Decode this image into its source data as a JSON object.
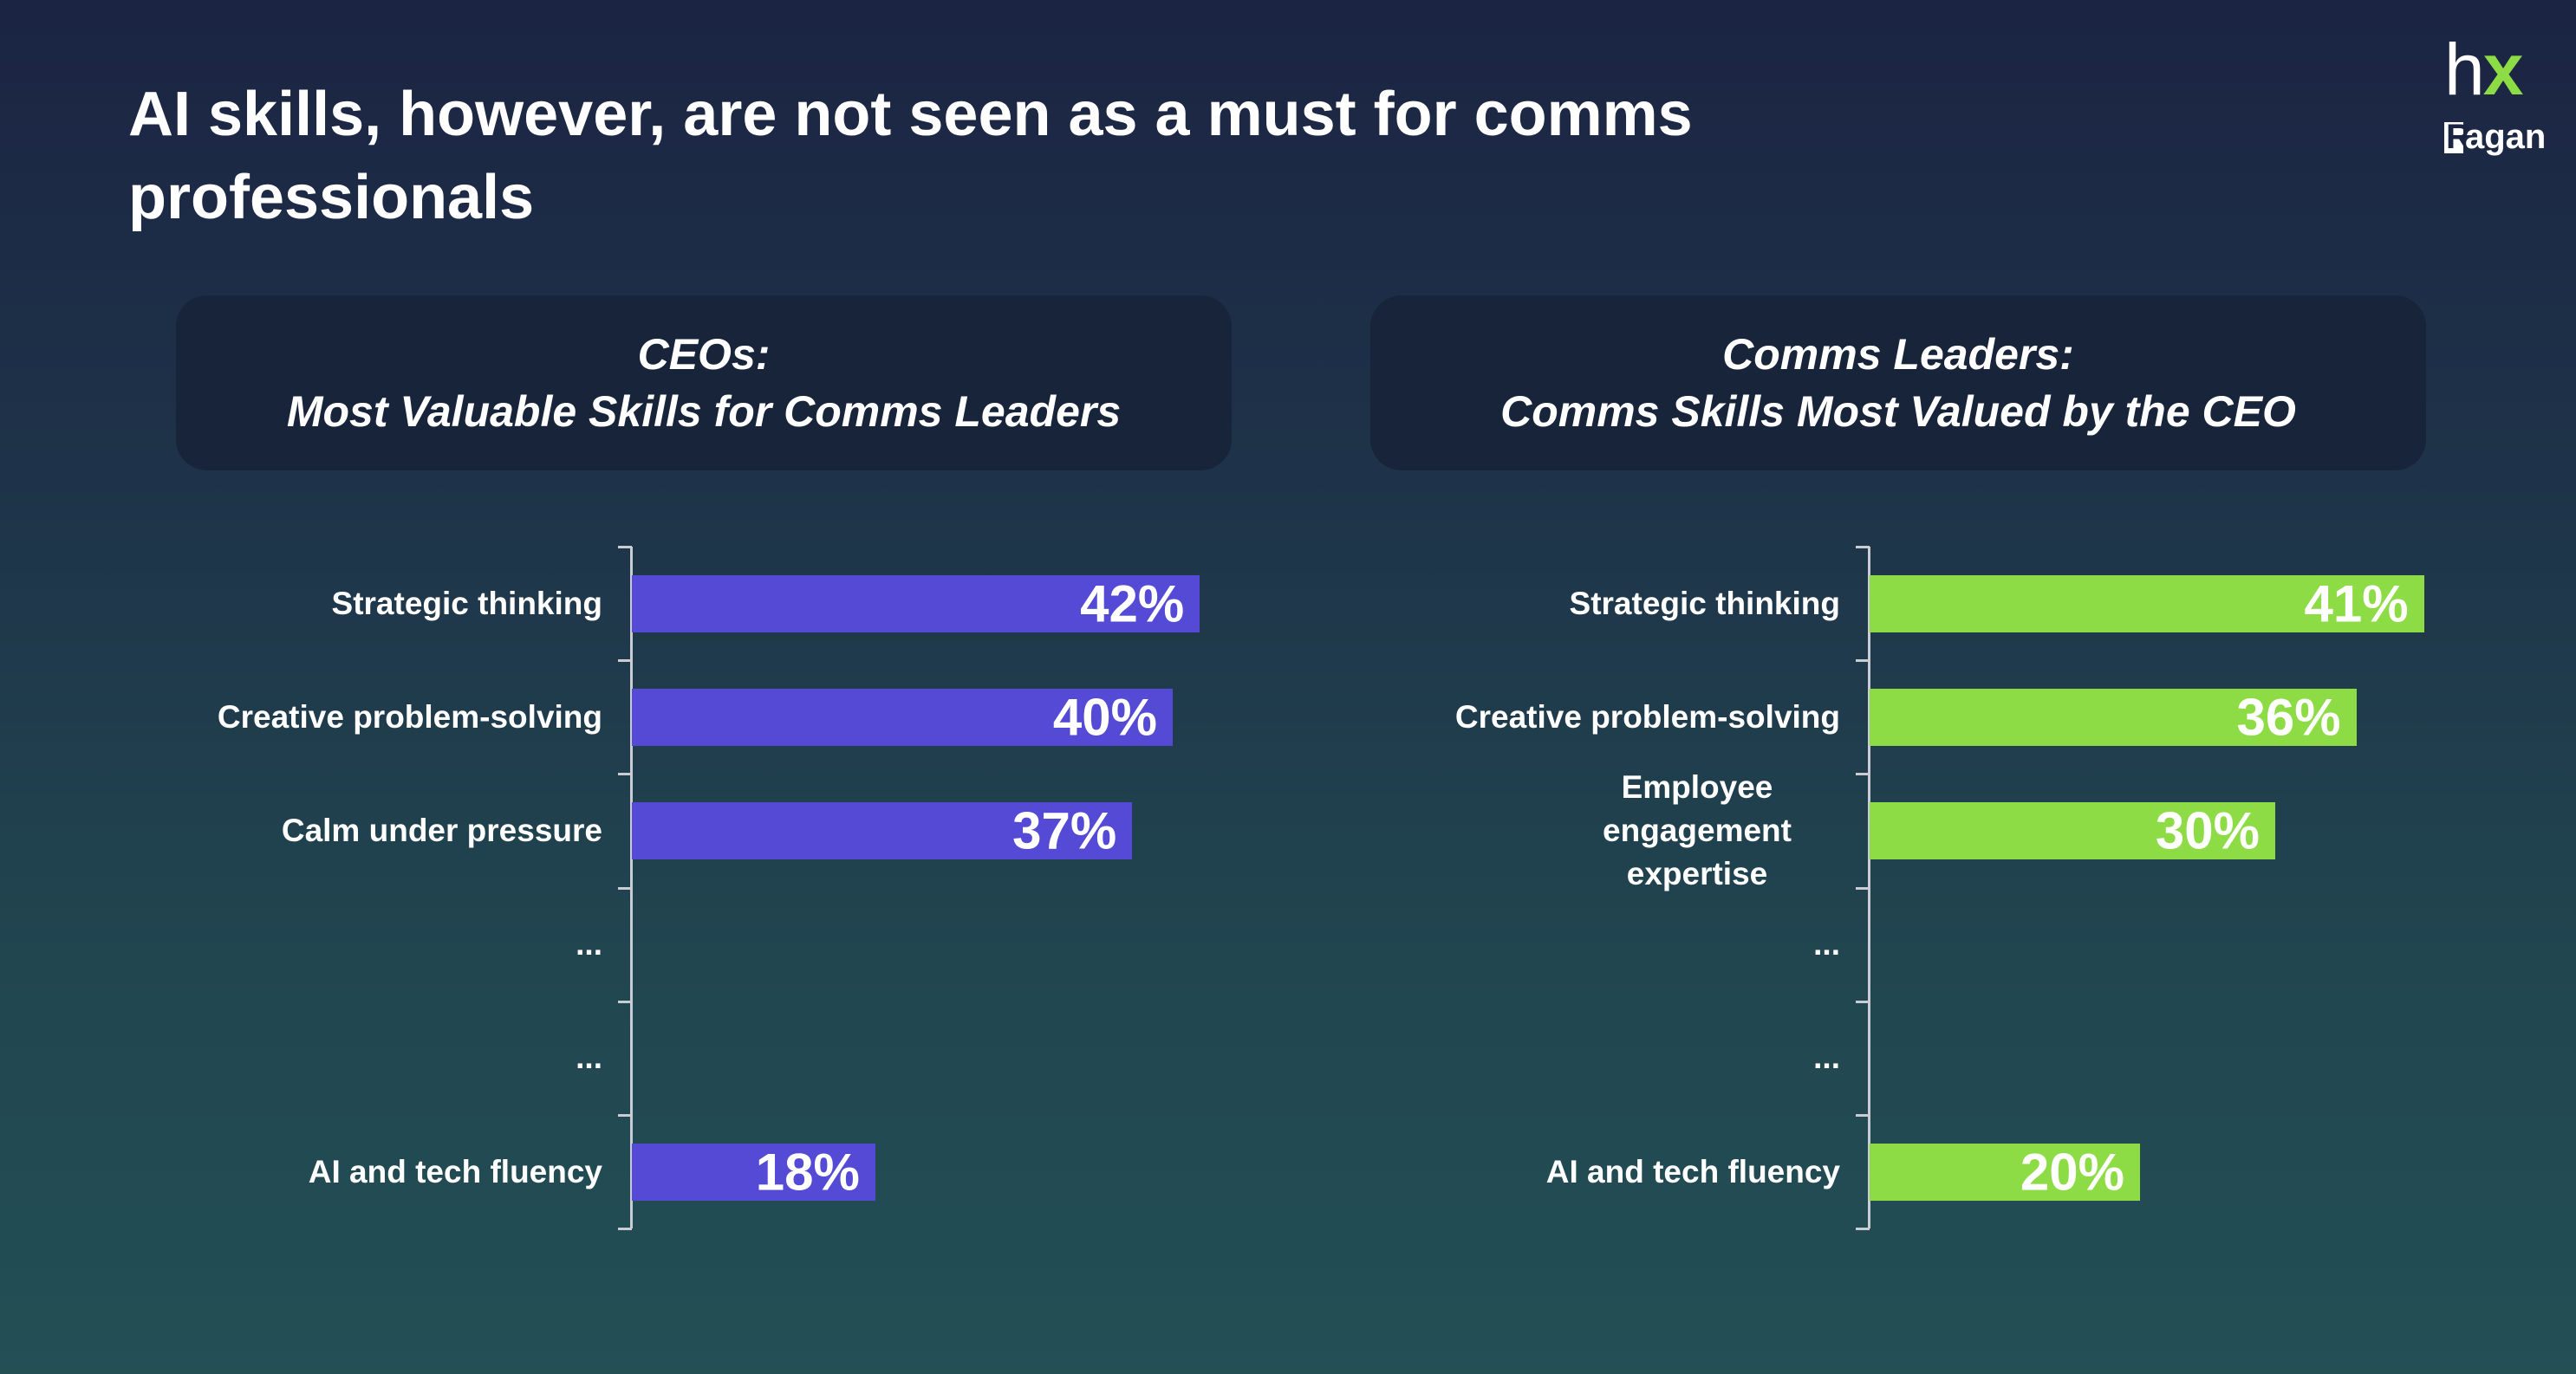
{
  "title": "AI skills, however, are not seen as a must for comms professionals",
  "logo": {
    "hx_h": "h",
    "hx_x": "x",
    "ragan": "agan",
    "ragan_initial": "R"
  },
  "chart_data": [
    {
      "type": "bar",
      "orientation": "horizontal",
      "title_line1": "CEOs:",
      "title_line2": "Most Valuable Skills for Comms Leaders",
      "color": "#544ad6",
      "categories": [
        "Strategic thinking",
        "Creative problem-solving",
        "Calm under pressure",
        "...",
        "...",
        "AI and tech fluency"
      ],
      "values": [
        42,
        40,
        37,
        null,
        null,
        18
      ],
      "labels": [
        "42%",
        "40%",
        "37%",
        "",
        "",
        "18%"
      ],
      "xlim": [
        0,
        45
      ]
    },
    {
      "type": "bar",
      "orientation": "horizontal",
      "title_line1": "Comms Leaders:",
      "title_line2": "Comms Skills Most Valued by the CEO",
      "color": "#8edc45",
      "categories": [
        "Strategic thinking",
        "Creative problem-solving",
        "Employee engagement expertise",
        "...",
        "...",
        "AI and tech fluency"
      ],
      "values": [
        41,
        36,
        30,
        null,
        null,
        20
      ],
      "labels": [
        "41%",
        "36%",
        "30%",
        "",
        "",
        "20%"
      ],
      "xlim": [
        0,
        45
      ]
    }
  ]
}
